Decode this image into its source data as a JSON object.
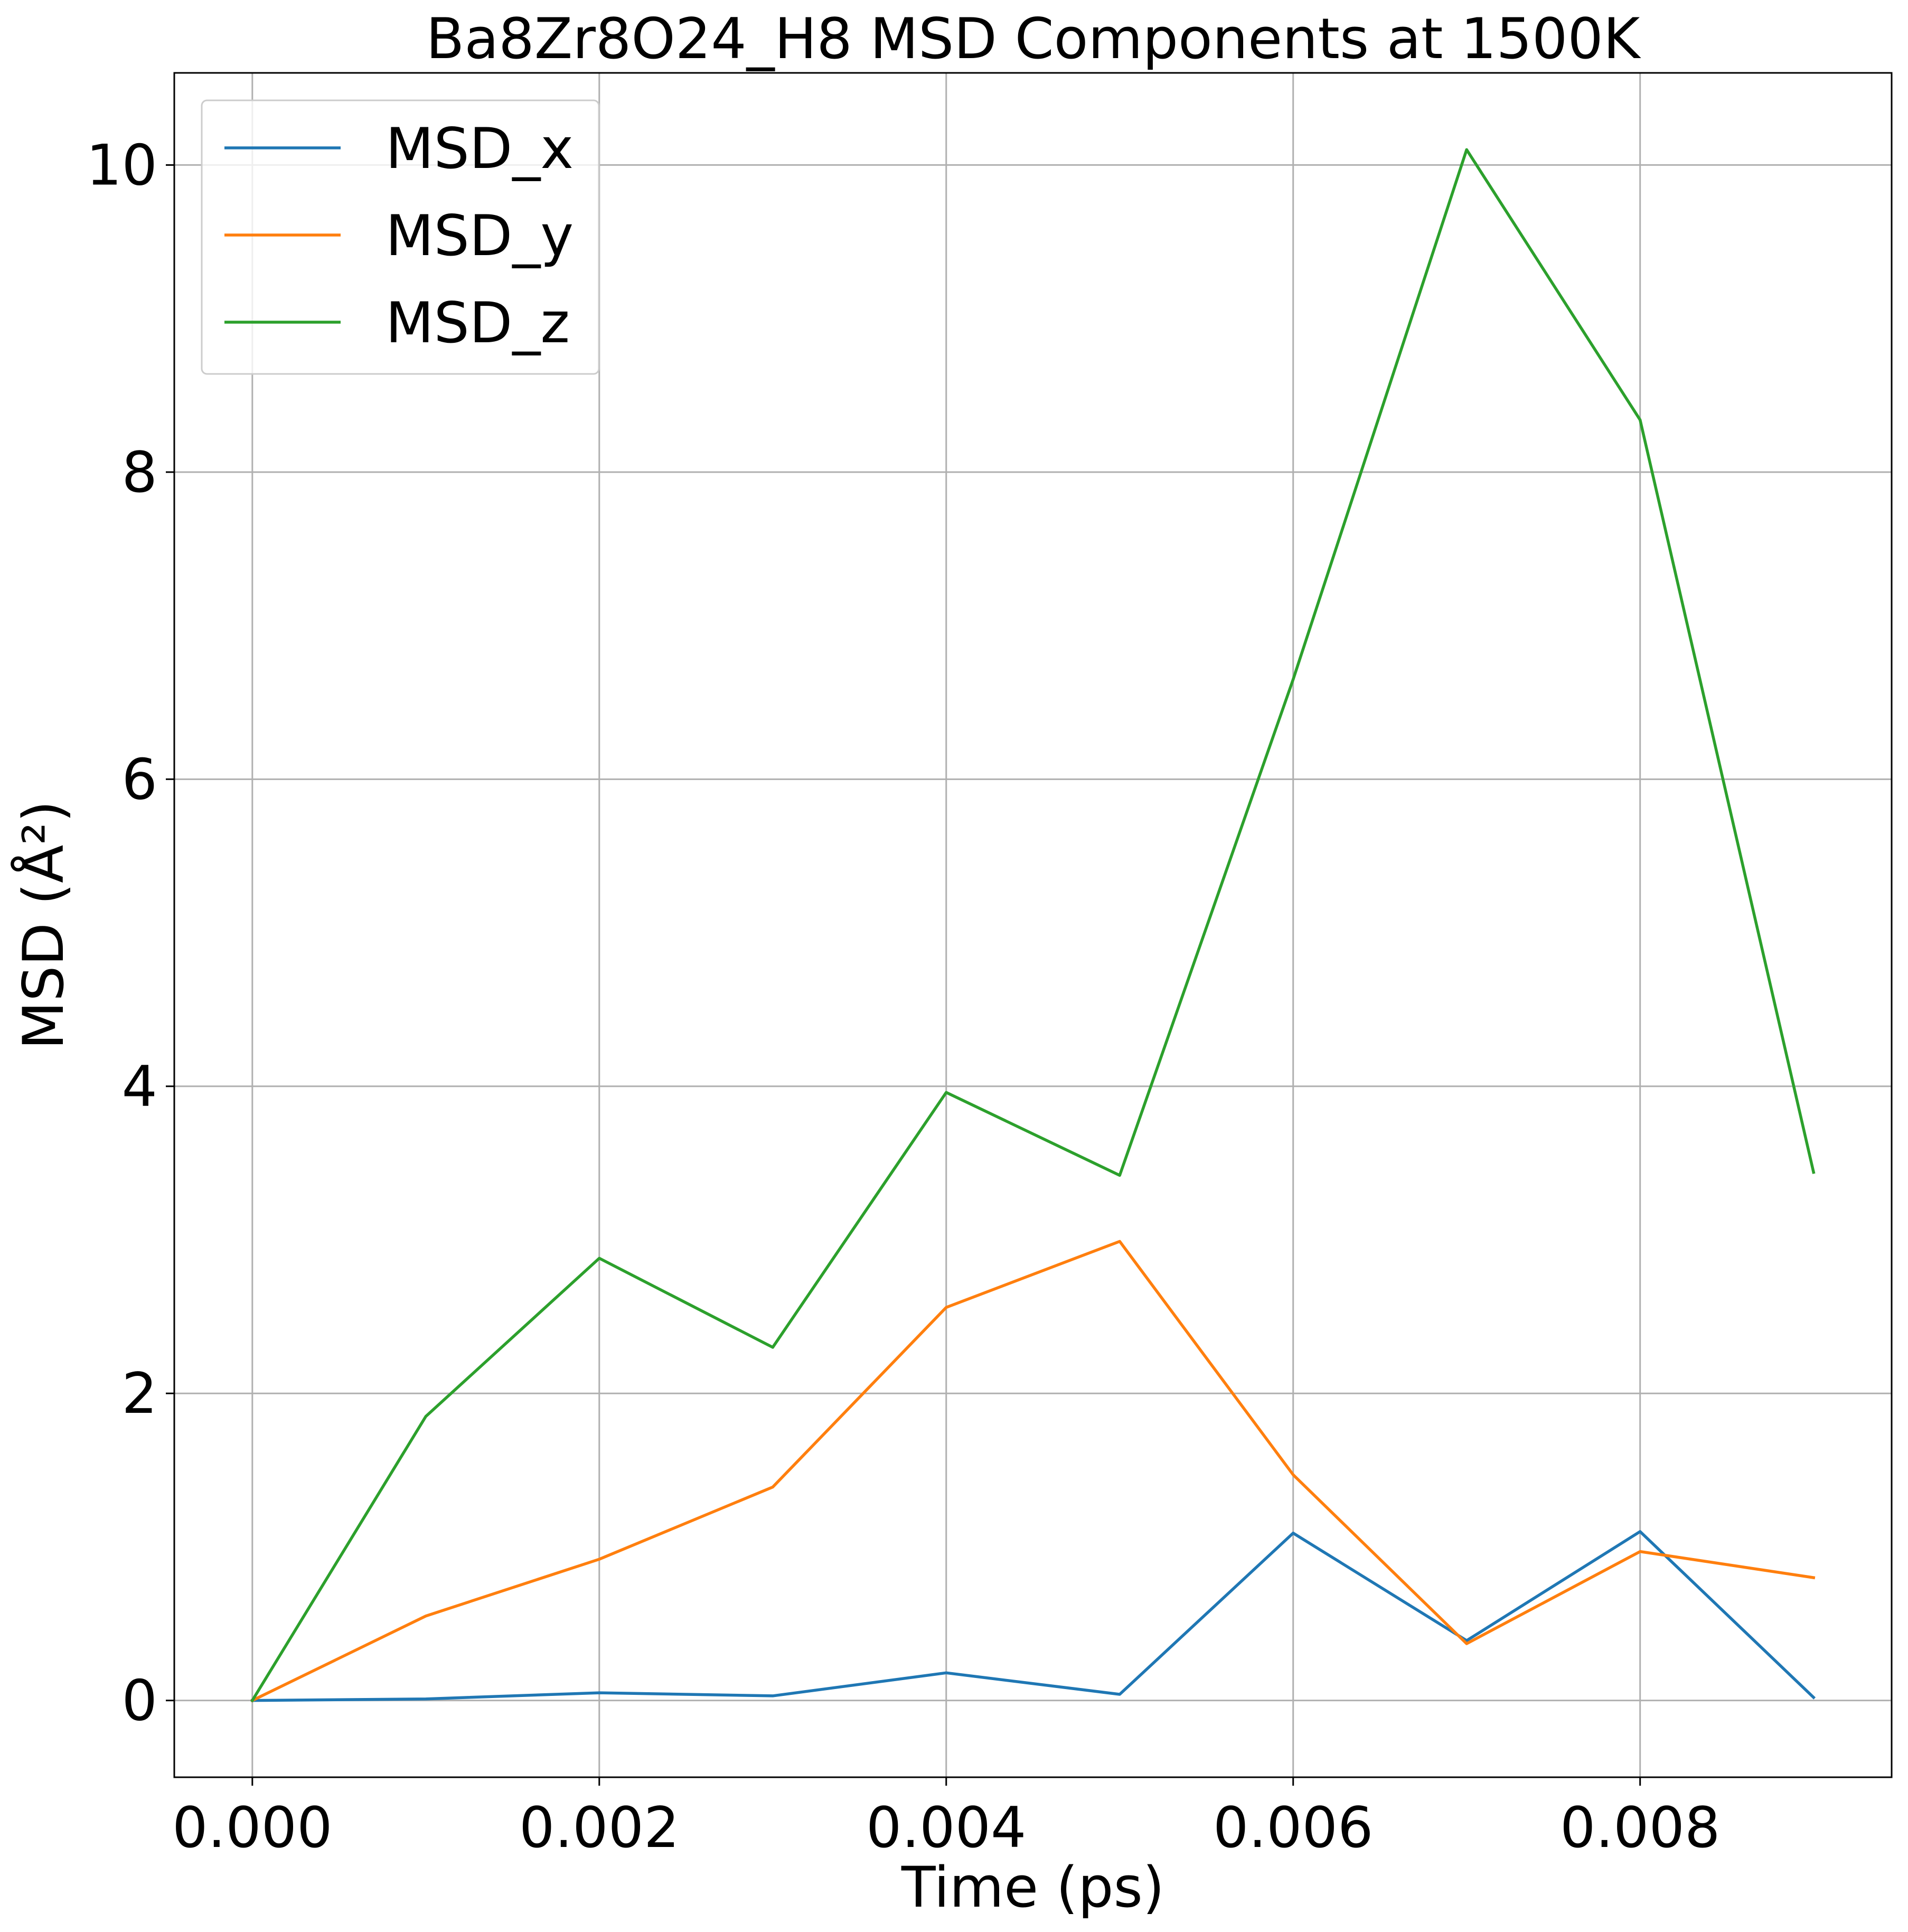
{
  "chart_data": {
    "type": "line",
    "title": "Ba8Zr8O24_H8 MSD Components at 1500K",
    "xlabel": "Time (ps)",
    "ylabel": "MSD (Å²)",
    "x": [
      0.0,
      0.001,
      0.002,
      0.003,
      0.004,
      0.005,
      0.006,
      0.007,
      0.008,
      0.009
    ],
    "series": [
      {
        "name": "MSD_x",
        "color": "#1f77b4",
        "values": [
          0.0,
          0.01,
          0.05,
          0.03,
          0.18,
          0.04,
          1.09,
          0.39,
          1.1,
          0.02
        ]
      },
      {
        "name": "MSD_y",
        "color": "#ff7f0e",
        "values": [
          0.0,
          0.55,
          0.92,
          1.39,
          2.56,
          2.99,
          1.47,
          0.37,
          0.97,
          0.8
        ]
      },
      {
        "name": "MSD_z",
        "color": "#2ca02c",
        "values": [
          0.0,
          1.85,
          2.88,
          2.3,
          3.96,
          3.42,
          6.65,
          10.1,
          8.34,
          3.44
        ]
      }
    ],
    "xlim": [
      -0.00045,
      0.00945
    ],
    "ylim": [
      -0.5,
      10.6
    ],
    "xticks": [
      0.0,
      0.002,
      0.004,
      0.006,
      0.008
    ],
    "xtick_labels": [
      "0.000",
      "0.002",
      "0.004",
      "0.006",
      "0.008"
    ],
    "yticks": [
      0,
      2,
      4,
      6,
      8,
      10
    ],
    "ytick_labels": [
      "0",
      "2",
      "4",
      "6",
      "8",
      "10"
    ],
    "grid": true,
    "legend_position": "top-left"
  }
}
